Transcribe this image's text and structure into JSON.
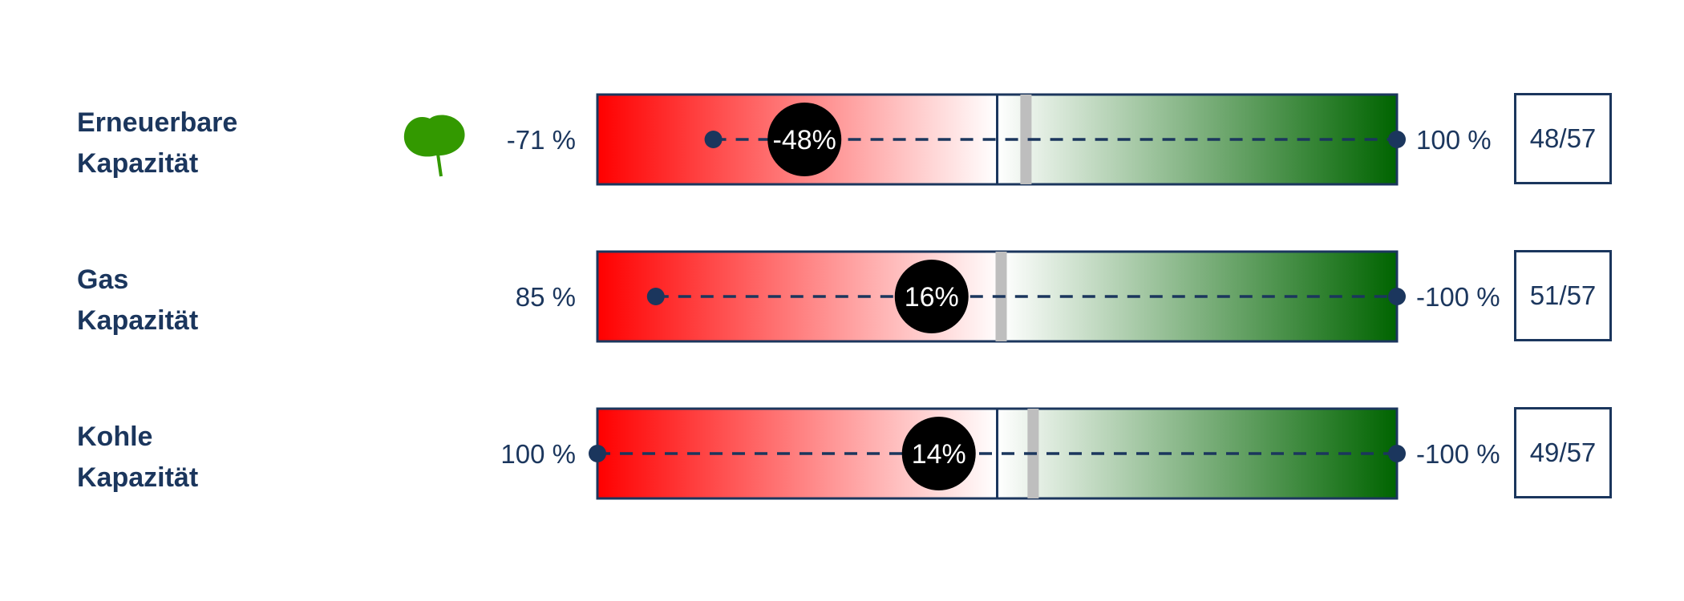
{
  "colors": {
    "text": "#1b365d",
    "negative": "#ff0000",
    "positive": "#006400",
    "marker": "#bebebe",
    "bubble": "#000000",
    "leaf": "#339900"
  },
  "chart_data": {
    "type": "range-bar",
    "scale": {
      "left": "red",
      "right": "green",
      "center_divider": true
    },
    "rows": [
      {
        "label_lines": [
          "Erneuerbare",
          "Kapazität"
        ],
        "icon": "leaf-icon",
        "left_label": "-71 %",
        "right_label": "100 %",
        "start_value": -71,
        "end_value": 100,
        "range_start_pos": 0.145,
        "center_pos": 0.5,
        "marker_pos": 0.536,
        "bubble_pos": 0.259,
        "bubble_label": "-48%",
        "score": "48/57"
      },
      {
        "label_lines": [
          "Gas",
          "Kapazität"
        ],
        "icon": "",
        "left_label": "85 %",
        "right_label": "-100 %",
        "start_value": 85,
        "end_value": -100,
        "range_start_pos": 0.073,
        "center_pos": 0.505,
        "marker_pos": 0.505,
        "bubble_pos": 0.418,
        "bubble_label": "16%",
        "score": "51/57"
      },
      {
        "label_lines": [
          "Kohle",
          "Kapazität"
        ],
        "icon": "",
        "left_label": "100 %",
        "right_label": "-100 %",
        "start_value": 100,
        "end_value": -100,
        "range_start_pos": 0.0,
        "center_pos": 0.5,
        "marker_pos": 0.545,
        "bubble_pos": 0.427,
        "bubble_label": "14%",
        "score": "49/57"
      }
    ]
  }
}
